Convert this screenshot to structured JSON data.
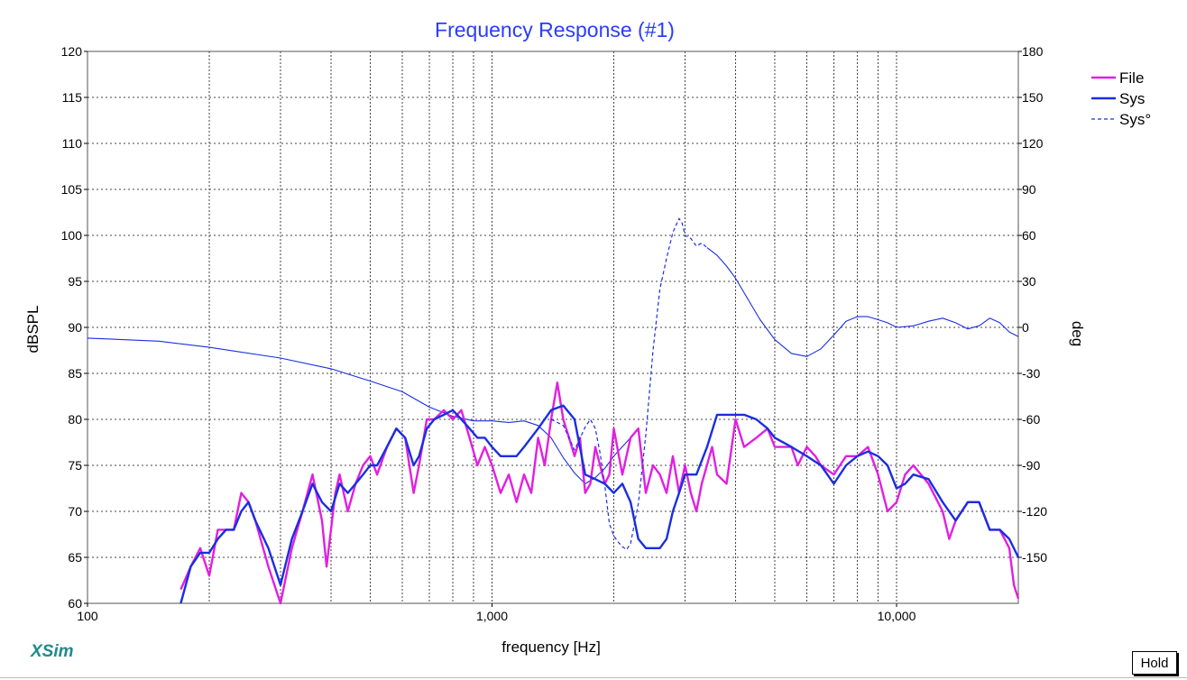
{
  "app": {
    "brand": "XSim",
    "hold_label": "Hold"
  },
  "chart_data": {
    "type": "line",
    "title": "Frequency Response (#1)",
    "xlabel": "frequency [Hz]",
    "ylabel": "dBSPL",
    "y2label": "deg",
    "x_scale": "log",
    "xlim": [
      100,
      20000
    ],
    "ylim": [
      60,
      120
    ],
    "y2lim": [
      -180,
      180
    ],
    "x_ticks": [
      100,
      1000,
      10000
    ],
    "x_tick_labels": [
      "100",
      "1,000",
      "10,000"
    ],
    "y_ticks": [
      60,
      65,
      70,
      75,
      80,
      85,
      90,
      95,
      100,
      105,
      110,
      115,
      120
    ],
    "y2_ticks": [
      -150,
      -120,
      -90,
      -60,
      -30,
      0,
      30,
      60,
      90,
      120,
      150,
      180
    ],
    "y2_tick_labels": [
      "-150",
      "-120",
      "-90",
      "-60",
      "-30",
      "0",
      "30",
      "60",
      "90",
      "120",
      "150",
      "180"
    ],
    "grid": true,
    "legend_position": "top-right",
    "series": [
      {
        "name": "File",
        "axis": "left",
        "color": "#e020e0",
        "style": "solid",
        "points": [
          [
            170,
            61.5
          ],
          [
            180,
            64
          ],
          [
            190,
            66
          ],
          [
            200,
            63
          ],
          [
            210,
            68
          ],
          [
            220,
            68
          ],
          [
            230,
            68
          ],
          [
            240,
            72
          ],
          [
            250,
            71
          ],
          [
            260,
            69
          ],
          [
            280,
            64
          ],
          [
            300,
            60
          ],
          [
            320,
            66
          ],
          [
            340,
            70
          ],
          [
            360,
            74
          ],
          [
            380,
            69
          ],
          [
            390,
            64
          ],
          [
            410,
            72
          ],
          [
            420,
            74
          ],
          [
            440,
            70
          ],
          [
            460,
            73
          ],
          [
            480,
            75
          ],
          [
            500,
            76
          ],
          [
            520,
            74
          ],
          [
            550,
            77
          ],
          [
            580,
            79
          ],
          [
            610,
            78
          ],
          [
            640,
            72
          ],
          [
            660,
            75
          ],
          [
            690,
            80
          ],
          [
            720,
            80
          ],
          [
            760,
            81
          ],
          [
            800,
            80
          ],
          [
            840,
            81
          ],
          [
            880,
            78
          ],
          [
            920,
            75
          ],
          [
            960,
            77
          ],
          [
            1000,
            75
          ],
          [
            1050,
            72
          ],
          [
            1100,
            74
          ],
          [
            1150,
            71
          ],
          [
            1200,
            74
          ],
          [
            1250,
            72
          ],
          [
            1300,
            78
          ],
          [
            1350,
            75
          ],
          [
            1400,
            80
          ],
          [
            1450,
            84
          ],
          [
            1500,
            80
          ],
          [
            1550,
            78
          ],
          [
            1600,
            76
          ],
          [
            1650,
            78
          ],
          [
            1700,
            72
          ],
          [
            1750,
            73
          ],
          [
            1800,
            77
          ],
          [
            1850,
            75
          ],
          [
            1900,
            73
          ],
          [
            1950,
            74
          ],
          [
            2000,
            79
          ],
          [
            2100,
            74
          ],
          [
            2200,
            78
          ],
          [
            2300,
            79
          ],
          [
            2400,
            72
          ],
          [
            2500,
            75
          ],
          [
            2600,
            74
          ],
          [
            2700,
            72
          ],
          [
            2800,
            76
          ],
          [
            2900,
            72
          ],
          [
            3000,
            75
          ],
          [
            3100,
            72
          ],
          [
            3200,
            70
          ],
          [
            3300,
            73
          ],
          [
            3500,
            77
          ],
          [
            3600,
            74
          ],
          [
            3800,
            73
          ],
          [
            4000,
            80
          ],
          [
            4200,
            77
          ],
          [
            4500,
            78
          ],
          [
            4800,
            79
          ],
          [
            5000,
            77
          ],
          [
            5500,
            77
          ],
          [
            5700,
            75
          ],
          [
            6000,
            77
          ],
          [
            6300,
            76
          ],
          [
            6500,
            75
          ],
          [
            7000,
            74
          ],
          [
            7500,
            76
          ],
          [
            8000,
            76
          ],
          [
            8500,
            77
          ],
          [
            9000,
            74
          ],
          [
            9500,
            70
          ],
          [
            10000,
            71
          ],
          [
            10500,
            74
          ],
          [
            11000,
            75
          ],
          [
            12000,
            73
          ],
          [
            13000,
            70
          ],
          [
            13500,
            67
          ],
          [
            14000,
            69
          ],
          [
            15000,
            71
          ],
          [
            16000,
            71
          ],
          [
            17000,
            68
          ],
          [
            18000,
            68
          ],
          [
            19000,
            66
          ],
          [
            19500,
            62
          ],
          [
            20000,
            60.5
          ]
        ]
      },
      {
        "name": "Sys",
        "axis": "left",
        "color": "#1a2ee0",
        "style": "solid",
        "points": [
          [
            170,
            60
          ],
          [
            180,
            64
          ],
          [
            190,
            65.5
          ],
          [
            200,
            65.5
          ],
          [
            210,
            67
          ],
          [
            220,
            68
          ],
          [
            230,
            68
          ],
          [
            240,
            70
          ],
          [
            250,
            71
          ],
          [
            260,
            69
          ],
          [
            280,
            66
          ],
          [
            300,
            62
          ],
          [
            320,
            67
          ],
          [
            340,
            70
          ],
          [
            360,
            73
          ],
          [
            380,
            71
          ],
          [
            400,
            70
          ],
          [
            420,
            73
          ],
          [
            440,
            72
          ],
          [
            460,
            73
          ],
          [
            480,
            74
          ],
          [
            500,
            75
          ],
          [
            520,
            75
          ],
          [
            550,
            77
          ],
          [
            580,
            79
          ],
          [
            610,
            78
          ],
          [
            640,
            75
          ],
          [
            660,
            76
          ],
          [
            690,
            79
          ],
          [
            720,
            80
          ],
          [
            760,
            80.5
          ],
          [
            800,
            81
          ],
          [
            840,
            80
          ],
          [
            880,
            79
          ],
          [
            920,
            78
          ],
          [
            960,
            78
          ],
          [
            1000,
            77
          ],
          [
            1050,
            76
          ],
          [
            1100,
            76
          ],
          [
            1150,
            76
          ],
          [
            1200,
            77
          ],
          [
            1300,
            79
          ],
          [
            1400,
            81
          ],
          [
            1500,
            81.5
          ],
          [
            1600,
            80
          ],
          [
            1700,
            74
          ],
          [
            1800,
            73.5
          ],
          [
            1900,
            73
          ],
          [
            2000,
            72
          ],
          [
            2100,
            73
          ],
          [
            2200,
            71
          ],
          [
            2300,
            67
          ],
          [
            2400,
            66
          ],
          [
            2500,
            66
          ],
          [
            2600,
            66
          ],
          [
            2700,
            67
          ],
          [
            2800,
            70
          ],
          [
            2900,
            72
          ],
          [
            3000,
            74
          ],
          [
            3200,
            74
          ],
          [
            3400,
            77
          ],
          [
            3600,
            80.5
          ],
          [
            3800,
            80.5
          ],
          [
            4000,
            80.5
          ],
          [
            4200,
            80.5
          ],
          [
            4500,
            80
          ],
          [
            4800,
            79
          ],
          [
            5000,
            78
          ],
          [
            5500,
            77
          ],
          [
            6000,
            76
          ],
          [
            6500,
            75
          ],
          [
            7000,
            73
          ],
          [
            7500,
            75
          ],
          [
            8000,
            76
          ],
          [
            8500,
            76.5
          ],
          [
            9000,
            76
          ],
          [
            9500,
            75
          ],
          [
            10000,
            72.5
          ],
          [
            10500,
            73
          ],
          [
            11000,
            74
          ],
          [
            12000,
            73.5
          ],
          [
            13000,
            71
          ],
          [
            14000,
            69
          ],
          [
            15000,
            71
          ],
          [
            16000,
            71
          ],
          [
            17000,
            68
          ],
          [
            18000,
            68
          ],
          [
            19000,
            67
          ],
          [
            20000,
            65
          ]
        ]
      },
      {
        "name": "Sys°",
        "axis": "right",
        "color": "#1a2ee0",
        "style": "dashed",
        "points": [
          [
            1400,
            -60
          ],
          [
            1500,
            -64
          ],
          [
            1600,
            -80
          ],
          [
            1700,
            -65
          ],
          [
            1750,
            -60
          ],
          [
            1800,
            -66
          ],
          [
            1850,
            -82
          ],
          [
            1900,
            -103
          ],
          [
            1950,
            -128
          ],
          [
            2000,
            -136
          ],
          [
            2050,
            -140
          ],
          [
            2100,
            -143
          ],
          [
            2150,
            -145
          ],
          [
            2200,
            -141
          ],
          [
            2300,
            -115
          ],
          [
            2400,
            -70
          ],
          [
            2500,
            -15
          ],
          [
            2600,
            25
          ],
          [
            2700,
            45
          ],
          [
            2800,
            62
          ],
          [
            2900,
            71
          ],
          [
            2950,
            68
          ],
          [
            3000,
            60
          ],
          [
            3100,
            58
          ],
          [
            3200,
            53
          ],
          [
            3300,
            55
          ],
          [
            3400,
            52
          ]
        ]
      },
      {
        "name": "",
        "axis": "right",
        "color": "#1a2ee0",
        "style": "thin",
        "points": [
          [
            100,
            -7
          ],
          [
            150,
            -9
          ],
          [
            200,
            -13
          ],
          [
            300,
            -20
          ],
          [
            400,
            -27
          ],
          [
            500,
            -35
          ],
          [
            600,
            -42
          ],
          [
            700,
            -52
          ],
          [
            800,
            -58
          ],
          [
            900,
            -61
          ],
          [
            1000,
            -61
          ],
          [
            1100,
            -62
          ],
          [
            1200,
            -61
          ],
          [
            1300,
            -64
          ],
          [
            1400,
            -72
          ],
          [
            1500,
            -85
          ],
          [
            1600,
            -95
          ],
          [
            1700,
            -102
          ],
          [
            1800,
            -98
          ],
          [
            1900,
            -92
          ],
          [
            2000,
            -84
          ],
          [
            2200,
            -72
          ]
        ]
      },
      {
        "name": "",
        "axis": "right",
        "color": "#1a2ee0",
        "style": "thin",
        "points": [
          [
            3400,
            52
          ],
          [
            3600,
            47
          ],
          [
            3800,
            40
          ],
          [
            4000,
            32
          ],
          [
            4300,
            18
          ],
          [
            4600,
            5
          ],
          [
            5000,
            -8
          ],
          [
            5500,
            -17
          ],
          [
            6000,
            -19
          ],
          [
            6500,
            -14
          ],
          [
            7000,
            -5
          ],
          [
            7500,
            4
          ],
          [
            8000,
            7
          ],
          [
            8500,
            7
          ],
          [
            9000,
            5
          ],
          [
            9500,
            3
          ],
          [
            10000,
            0
          ],
          [
            11000,
            1
          ],
          [
            12000,
            4
          ],
          [
            13000,
            6
          ],
          [
            14000,
            3
          ],
          [
            15000,
            -1
          ],
          [
            16000,
            1
          ],
          [
            17000,
            6
          ],
          [
            18000,
            3
          ],
          [
            19000,
            -3
          ],
          [
            20000,
            -6
          ]
        ]
      }
    ]
  }
}
